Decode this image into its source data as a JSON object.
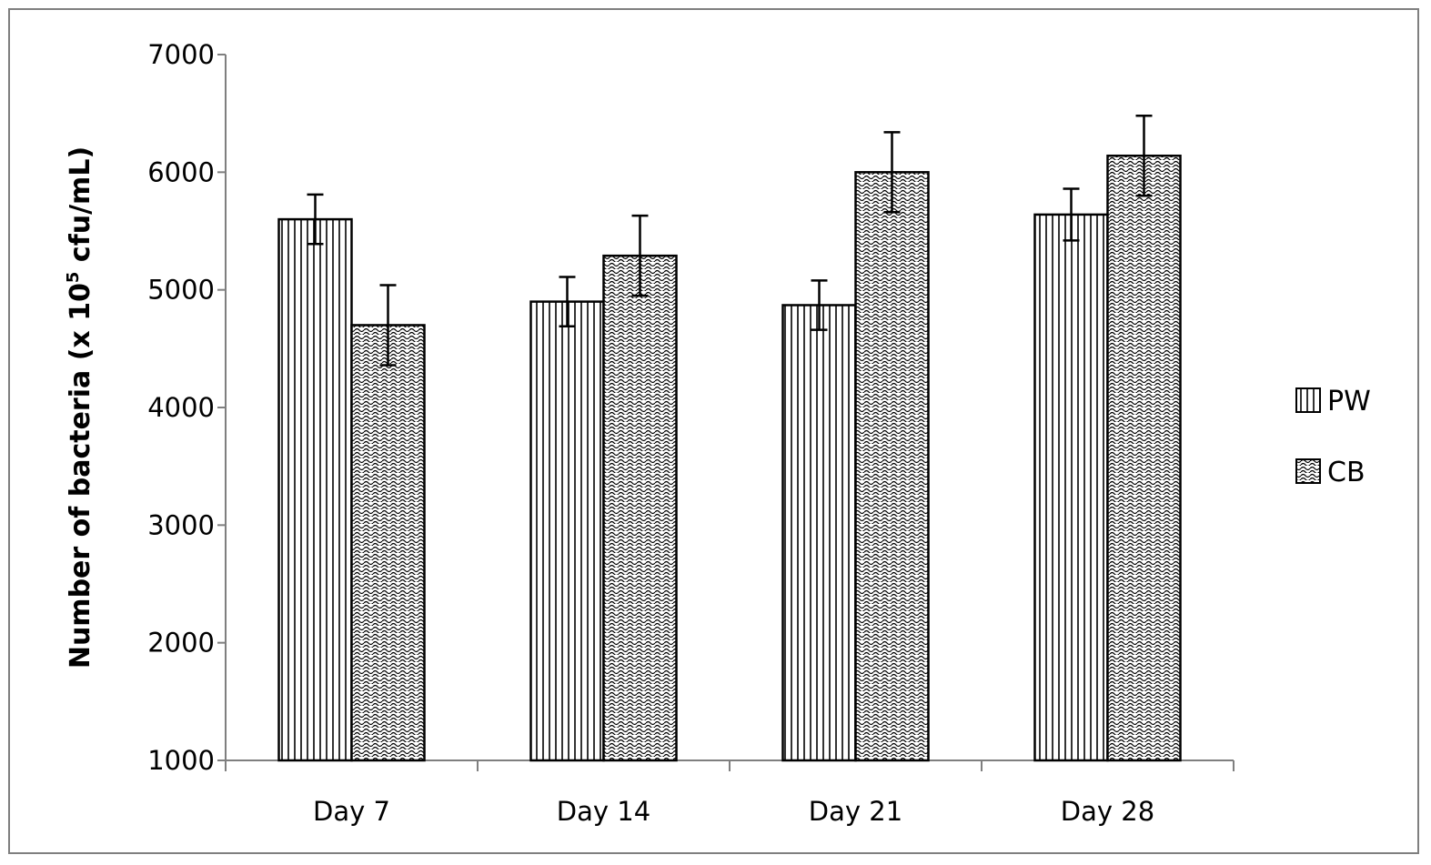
{
  "chart_data": {
    "type": "bar",
    "title": "",
    "xlabel": "",
    "ylabel_main": "Number of bacteria (x 10",
    "ylabel_sup": "5",
    "ylabel_tail": " cfu/mL)",
    "categories": [
      "Day 7",
      "Day 14",
      "Day 21",
      "Day 28"
    ],
    "ylim": [
      1000,
      7000
    ],
    "yticks": [
      "1000",
      "2000",
      "3000",
      "4000",
      "5000",
      "6000",
      "7000"
    ],
    "grid": false,
    "legend_position": "right",
    "series": [
      {
        "name": "PW",
        "pattern": "vertical-lines",
        "values": [
          5600,
          4900,
          4870,
          5640
        ],
        "errors": [
          210,
          210,
          210,
          220
        ]
      },
      {
        "name": "CB",
        "pattern": "wave",
        "values": [
          4700,
          5290,
          6000,
          6140
        ],
        "errors": [
          340,
          340,
          340,
          340
        ]
      }
    ]
  },
  "colors": {
    "axis": "#7f7f7f",
    "frame": "#7f7f7f",
    "bar_stroke": "#000000",
    "background": "#ffffff"
  }
}
